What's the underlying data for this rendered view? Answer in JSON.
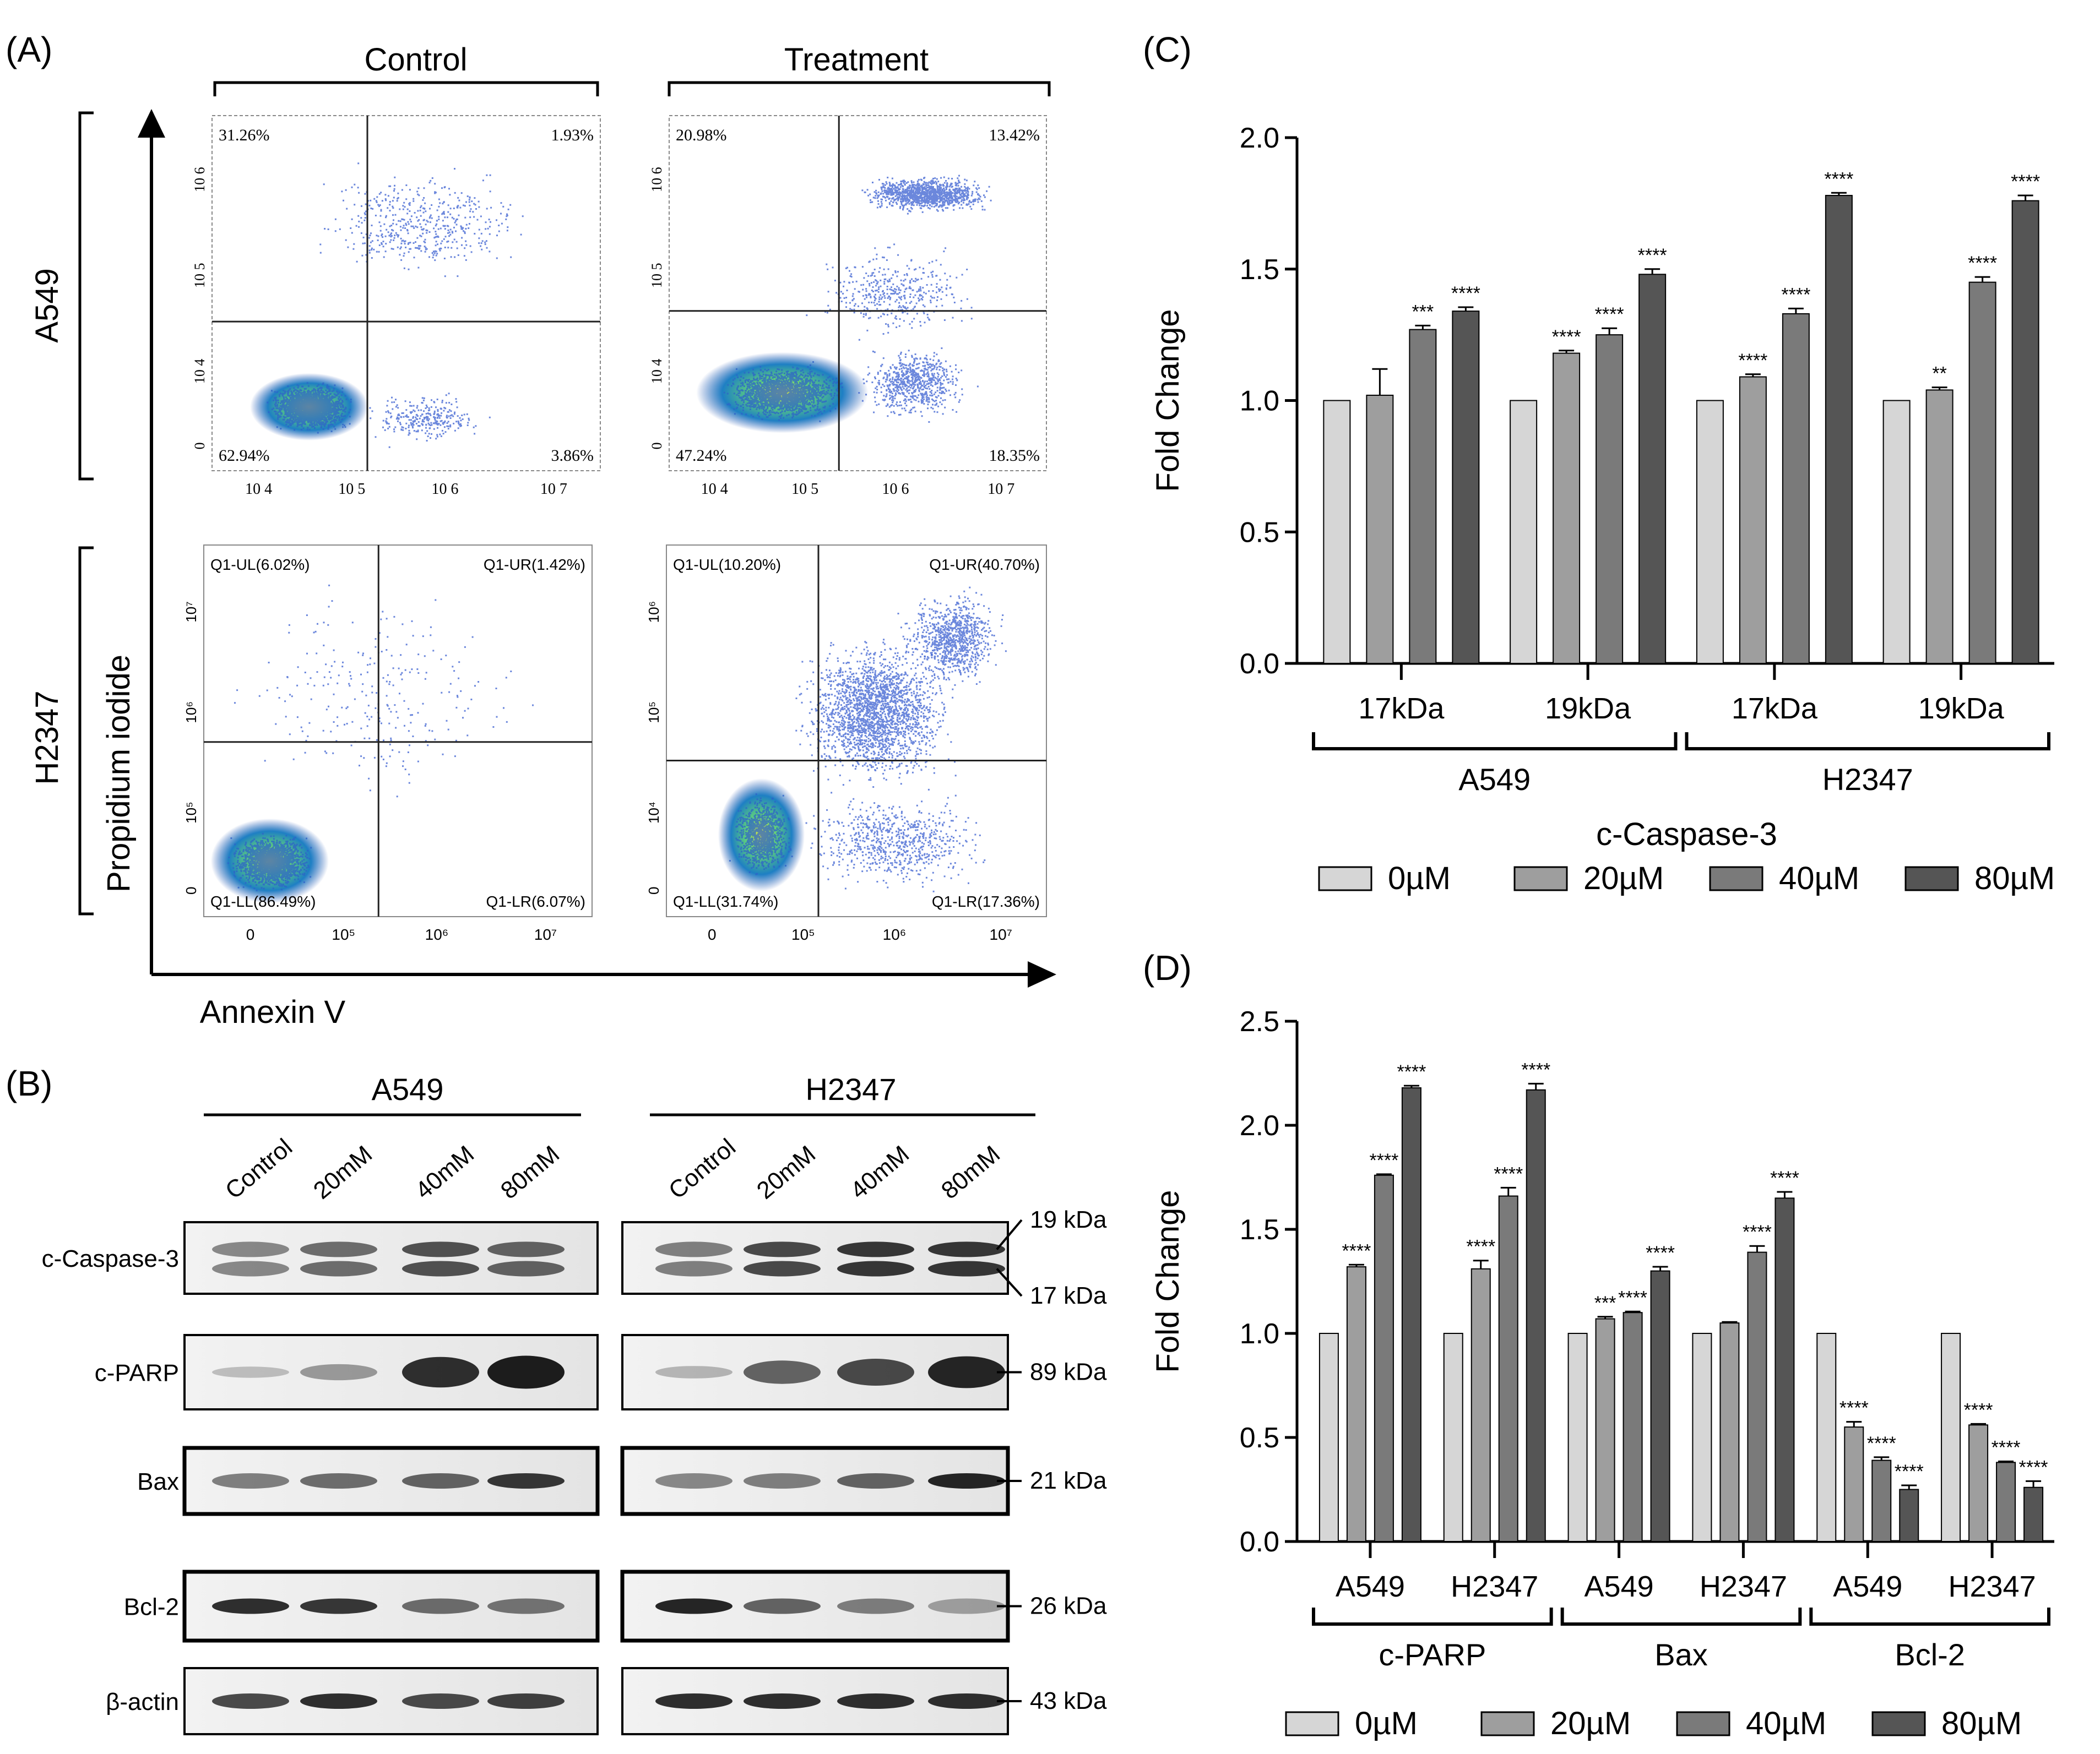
{
  "panel_a": {
    "label": "(A)",
    "col_headers": [
      "Control",
      "Treatment"
    ],
    "row_labels": [
      "A549",
      "H2347"
    ],
    "y_axis_label": "Propidium iodide",
    "x_axis_label": "Annexin V",
    "plots": [
      {
        "id": "a549-control",
        "quads": [
          "31.26%",
          "1.93%",
          "62.94%",
          "3.86%"
        ],
        "yticks": [
          "10 6",
          "10 5",
          "10 4",
          "0"
        ],
        "xticks": [
          "10 4",
          "10 5",
          "10 6",
          "10 7"
        ]
      },
      {
        "id": "a549-treatment",
        "quads": [
          "20.98%",
          "13.42%",
          "47.24%",
          "18.35%"
        ],
        "yticks": [
          "10 6",
          "10 5",
          "10 4",
          "0"
        ],
        "xticks": [
          "10 4",
          "10 5",
          "10 6",
          "10 7"
        ]
      },
      {
        "id": "h2347-control",
        "quads": [
          "Q1-UL(6.02%)",
          "Q1-UR(1.42%)",
          "Q1-LL(86.49%)",
          "Q1-LR(6.07%)"
        ],
        "yticks": [
          "10⁷",
          "10⁶",
          "10⁵",
          "0"
        ],
        "xticks": [
          "0",
          "10⁵",
          "10⁶",
          "10⁷"
        ]
      },
      {
        "id": "h2347-treatment",
        "quads": [
          "Q1-UL(10.20%)",
          "Q1-UR(40.70%)",
          "Q1-LL(31.74%)",
          "Q1-LR(17.36%)"
        ],
        "yticks": [
          "10⁶",
          "10⁵",
          "10⁴",
          "0"
        ],
        "xticks": [
          "0",
          "10⁵",
          "10⁶",
          "10⁷"
        ]
      }
    ]
  },
  "panel_b": {
    "label": "(B)",
    "groups": [
      "A549",
      "H2347"
    ],
    "lanes": [
      "Control",
      "20mM",
      "40mM",
      "80mM"
    ],
    "rows": [
      {
        "name": "c-Caspase-3",
        "kda": [
          "19 kDa",
          "17 kDa"
        ]
      },
      {
        "name": "c-PARP",
        "kda": [
          "89 kDa"
        ]
      },
      {
        "name": "Bax",
        "kda": [
          "21 kDa"
        ]
      },
      {
        "name": "Bcl-2",
        "kda": [
          "26 kDa"
        ]
      },
      {
        "name": "β-actin",
        "kda": [
          "43 kDa"
        ]
      }
    ]
  },
  "chart_data": [
    {
      "panel": "(C)",
      "type": "bar",
      "ylabel": "Fold Change",
      "ylim": [
        0,
        2.0
      ],
      "yticks": [
        "0.0",
        "0.5",
        "1.0",
        "1.5",
        "2.0"
      ],
      "categories": [
        "17kDa",
        "19kDa",
        "17kDa",
        "19kDa"
      ],
      "groups": [
        {
          "name": "A549",
          "span": [
            0,
            1
          ]
        },
        {
          "name": "H2347",
          "span": [
            2,
            3
          ]
        }
      ],
      "xlabel": "c-Caspase-3",
      "series": [
        {
          "name": "0µM",
          "color": "#d6d6d6",
          "values": [
            1.0,
            1.0,
            1.0,
            1.0
          ],
          "err": [
            0,
            0,
            0,
            0
          ],
          "sig": [
            "",
            "",
            "",
            ""
          ]
        },
        {
          "name": "20µM",
          "color": "#9e9e9e",
          "values": [
            1.02,
            1.18,
            1.09,
            1.04
          ],
          "err": [
            0.1,
            0.01,
            0.01,
            0.01
          ],
          "sig": [
            "",
            "****",
            "****",
            "**"
          ]
        },
        {
          "name": "40µM",
          "color": "#7a7a7a",
          "values": [
            1.27,
            1.25,
            1.33,
            1.45
          ],
          "err": [
            0.015,
            0.025,
            0.02,
            0.02
          ],
          "sig": [
            "***",
            "****",
            "****",
            "****"
          ]
        },
        {
          "name": "80µM",
          "color": "#555555",
          "values": [
            1.34,
            1.48,
            1.78,
            1.76
          ],
          "err": [
            0.015,
            0.02,
            0.01,
            0.02
          ],
          "sig": [
            "****",
            "****",
            "****",
            "****"
          ]
        }
      ]
    },
    {
      "panel": "(D)",
      "type": "bar",
      "ylabel": "Fold Change",
      "ylim": [
        0,
        2.5
      ],
      "yticks": [
        "0.0",
        "0.5",
        "1.0",
        "1.5",
        "2.0",
        "2.5"
      ],
      "categories": [
        "A549",
        "H2347",
        "A549",
        "H2347",
        "A549",
        "H2347"
      ],
      "groups": [
        {
          "name": "c-PARP",
          "span": [
            0,
            1
          ]
        },
        {
          "name": "Bax",
          "span": [
            2,
            3
          ]
        },
        {
          "name": "Bcl-2",
          "span": [
            4,
            5
          ]
        }
      ],
      "xlabel": "",
      "series": [
        {
          "name": "0µM",
          "color": "#d6d6d6",
          "values": [
            1.0,
            1.0,
            1.0,
            1.0,
            1.0,
            1.0
          ],
          "err": [
            0,
            0,
            0,
            0,
            0,
            0
          ],
          "sig": [
            "",
            "",
            "",
            "",
            "",
            ""
          ]
        },
        {
          "name": "20µM",
          "color": "#9e9e9e",
          "values": [
            1.32,
            1.31,
            1.07,
            1.05,
            0.55,
            0.56
          ],
          "err": [
            0.01,
            0.04,
            0.01,
            0.005,
            0.025,
            0.005
          ],
          "sig": [
            "****",
            "****",
            "***",
            "",
            "****",
            "****"
          ]
        },
        {
          "name": "40µM",
          "color": "#7a7a7a",
          "values": [
            1.76,
            1.66,
            1.1,
            1.39,
            0.39,
            0.38
          ],
          "err": [
            0.005,
            0.04,
            0.005,
            0.03,
            0.015,
            0.005
          ],
          "sig": [
            "****",
            "****",
            "****",
            "****",
            "****",
            "****"
          ]
        },
        {
          "name": "80µM",
          "color": "#555555",
          "values": [
            2.18,
            2.17,
            1.3,
            1.65,
            0.25,
            0.26
          ],
          "err": [
            0.01,
            0.03,
            0.02,
            0.03,
            0.02,
            0.03
          ],
          "sig": [
            "****",
            "****",
            "****",
            "****",
            "****",
            "****"
          ]
        }
      ]
    }
  ]
}
